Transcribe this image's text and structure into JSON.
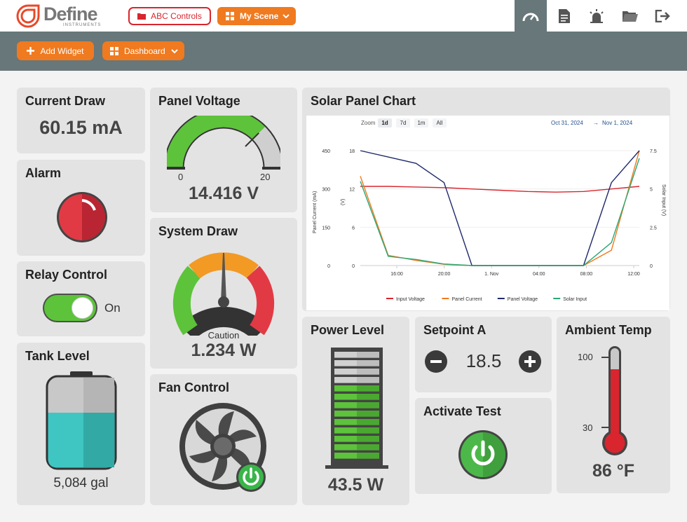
{
  "brand": {
    "name": "Define",
    "sub": "INSTRUMENTS",
    "color": "#e8492a"
  },
  "header": {
    "project_button": "ABC Controls",
    "scene_button": "My Scene",
    "tabs": [
      "gauge-icon",
      "document-icon",
      "alarm-light-icon",
      "folder-icon",
      "logout-icon"
    ]
  },
  "toolbar": {
    "add_widget": "Add Widget",
    "dashboard": "Dashboard"
  },
  "colors": {
    "orange": "#f07a1f",
    "red": "#d9252d",
    "green": "#5cc33a",
    "slate": "#67777a",
    "teal": "#3cc4c0"
  },
  "widgets": {
    "current_draw": {
      "title": "Current Draw",
      "value": "60.15 mA"
    },
    "alarm": {
      "title": "Alarm"
    },
    "relay": {
      "title": "Relay Control",
      "state": "On"
    },
    "tank": {
      "title": "Tank Level",
      "value": "5,084 gal",
      "fill_fraction": 0.58
    },
    "panel_voltage": {
      "title": "Panel Voltage",
      "min": "0",
      "max": "20",
      "value": "14.416 V",
      "fraction": 0.72
    },
    "system_draw": {
      "title": "System Draw",
      "status": "Caution",
      "value": "1.234 W"
    },
    "fan": {
      "title": "Fan Control"
    },
    "power_level": {
      "title": "Power Level",
      "value": "43.5 W",
      "filled_segments": 9,
      "total_segments": 13
    },
    "setpoint": {
      "title": "Setpoint A",
      "value": "18.5"
    },
    "activate": {
      "title": "Activate Test"
    },
    "ambient": {
      "title": "Ambient Temp",
      "tick_high": "100",
      "tick_low": "30",
      "value": "86 °F"
    },
    "solar_chart": {
      "title": "Solar Panel Chart",
      "zoom_label": "Zoom",
      "zoom_options": [
        "1d",
        "7d",
        "1m",
        "All"
      ],
      "date_from": "Oct 31, 2024",
      "date_sep": "→",
      "date_to": "Nov 1, 2024"
    }
  },
  "chart_data": {
    "type": "line",
    "x_ticks": [
      "16:00",
      "20:00",
      "1. Nov",
      "04:00",
      "08:00",
      "12:00"
    ],
    "axes": {
      "left_outer": {
        "label": "Panel Current (mA)",
        "ticks": [
          "450",
          "300",
          "150",
          "0"
        ]
      },
      "left_inner": {
        "label": "(V)",
        "ticks": [
          "18",
          "12",
          "6",
          "0"
        ]
      },
      "right": {
        "label": "Solar Input (V)",
        "ticks": [
          "7.5",
          "5",
          "2.5",
          "0"
        ]
      }
    },
    "legend_position": "bottom",
    "series": [
      {
        "name": "Input Voltage",
        "color": "#d9252d",
        "values": [
          12.4,
          12.4,
          12.3,
          12.2,
          12.0,
          11.8,
          11.6,
          11.5,
          11.6,
          12.0,
          12.4
        ]
      },
      {
        "name": "Panel Current",
        "color": "#f07a1f",
        "values": [
          350,
          40,
          20,
          5,
          0,
          0,
          0,
          0,
          0,
          60,
          500
        ]
      },
      {
        "name": "Panel Voltage",
        "color": "#1f2a6b",
        "values": [
          18,
          17,
          16,
          13,
          0,
          0,
          0,
          0,
          0,
          13,
          19
        ]
      },
      {
        "name": "Solar Input",
        "color": "#2aa876",
        "values": [
          5.5,
          0.6,
          0.4,
          0.1,
          0,
          0,
          0,
          0,
          0,
          1.5,
          7.0
        ]
      }
    ]
  }
}
